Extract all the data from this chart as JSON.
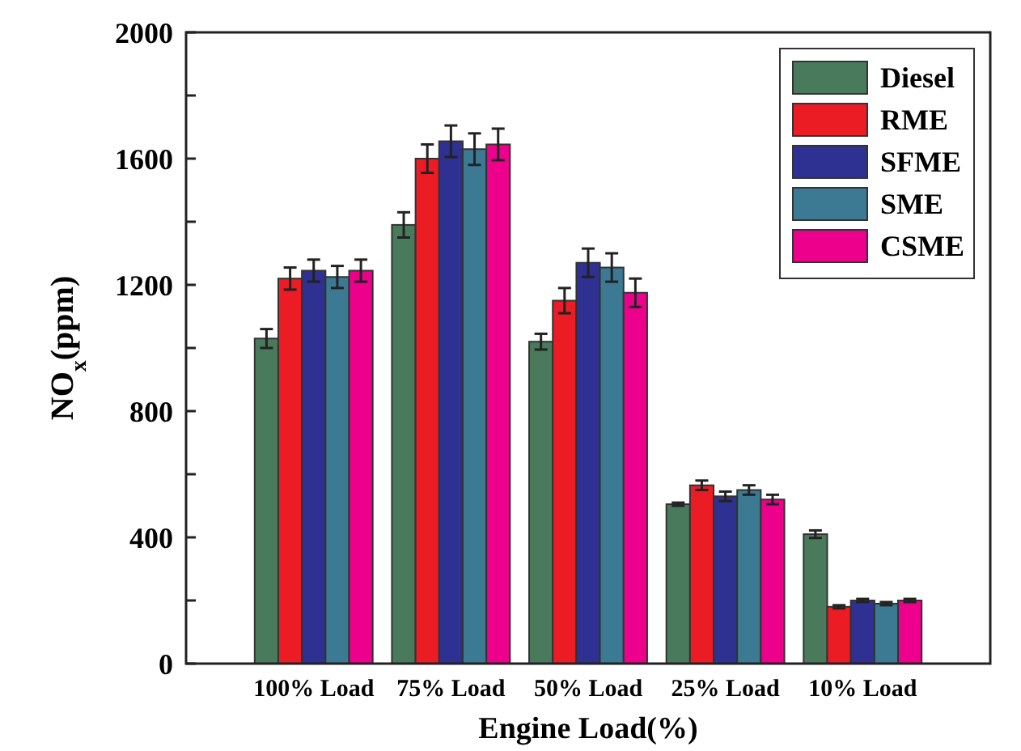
{
  "chart_data": {
    "type": "bar",
    "xlabel": "Engine Load(%)",
    "ylabel": "NO$_{x}$(ppm)",
    "categories": [
      "100% Load",
      "75% Load",
      "50% Load",
      "25% Load",
      "10% Load"
    ],
    "series": [
      {
        "name": "Diesel",
        "color": "#4a7a5c",
        "values": [
          1030,
          1390,
          1020,
          505,
          410
        ],
        "errors": [
          30,
          40,
          25,
          5,
          12
        ]
      },
      {
        "name": "RME",
        "color": "#ec1c24",
        "values": [
          1220,
          1600,
          1150,
          565,
          180
        ],
        "errors": [
          35,
          45,
          40,
          15,
          5
        ]
      },
      {
        "name": "SFME",
        "color": "#2e3192",
        "values": [
          1245,
          1655,
          1270,
          530,
          200
        ],
        "errors": [
          35,
          50,
          45,
          15,
          5
        ]
      },
      {
        "name": "SME",
        "color": "#3c7a94",
        "values": [
          1225,
          1630,
          1255,
          550,
          190
        ],
        "errors": [
          35,
          50,
          45,
          15,
          5
        ]
      },
      {
        "name": "CSME",
        "color": "#ec008c",
        "values": [
          1245,
          1645,
          1175,
          520,
          200
        ],
        "errors": [
          35,
          50,
          45,
          15,
          5
        ]
      }
    ],
    "ylim": [
      0,
      2000
    ],
    "yticks": [
      0,
      {
        "value": 200,
        "label": null
      },
      400,
      {
        "value": 600,
        "label": null
      },
      800,
      {
        "value": 1000,
        "label": null
      },
      1200,
      {
        "value": 1400,
        "label": null
      },
      1600,
      {
        "value": 1800,
        "label": null
      },
      2000
    ],
    "grid": false,
    "legend": "top right"
  }
}
